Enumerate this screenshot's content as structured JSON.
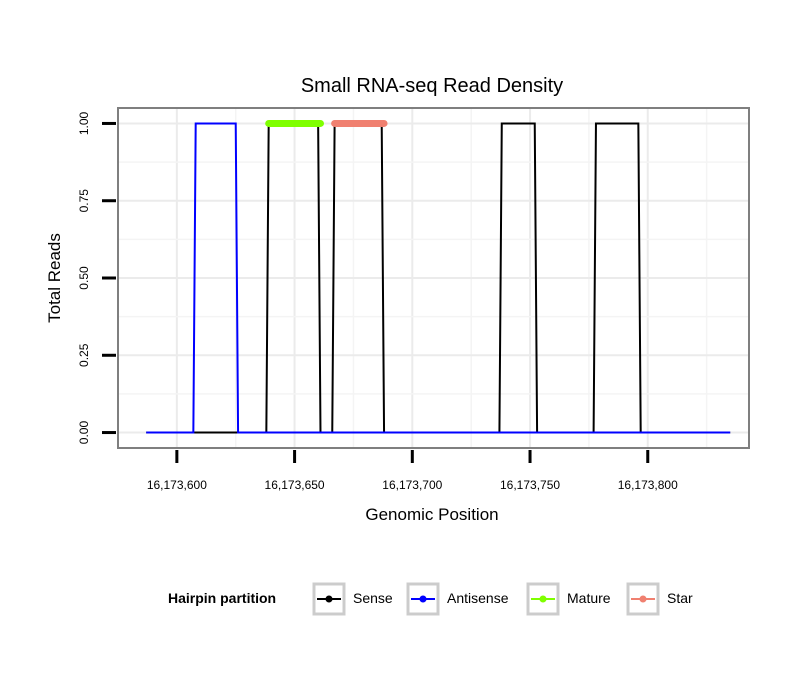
{
  "chart_data": {
    "type": "line",
    "title": "Small RNA-seq Read Density",
    "xlabel": "Genomic Position",
    "ylabel": "Total Reads",
    "xlim": [
      16173575,
      16173843
    ],
    "ylim": [
      -0.05,
      1.05
    ],
    "x_ticks": [
      16173600,
      16173650,
      16173700,
      16173750,
      16173800
    ],
    "x_tick_labels": [
      "16,173,600",
      "16,173,650",
      "16,173,700",
      "16,173,750",
      "16,173,800"
    ],
    "y_ticks": [
      0,
      0.25,
      0.5,
      0.75,
      1
    ],
    "y_tick_labels": [
      "0.00",
      "0.25",
      "0.50",
      "0.75",
      "1.00"
    ],
    "grid": true,
    "legend": {
      "title": "Hairpin partition",
      "position": "bottom",
      "entries": [
        "Sense",
        "Antisense",
        "Mature",
        "Star"
      ]
    },
    "series": [
      {
        "name": "Sense",
        "color": "#000000",
        "x": [
          16173587,
          16173638,
          16173639,
          16173660,
          16173661,
          16173666,
          16173667,
          16173687,
          16173688,
          16173737,
          16173738,
          16173752,
          16173753,
          16173777,
          16173778,
          16173796,
          16173797,
          16173835
        ],
        "y": [
          0,
          0,
          1,
          1,
          0,
          0,
          1,
          1,
          0,
          0,
          1,
          1,
          0,
          0,
          1,
          1,
          0,
          0
        ]
      },
      {
        "name": "Antisense",
        "color": "#0000FF",
        "x": [
          16173587,
          16173607,
          16173608,
          16173625,
          16173626,
          16173835
        ],
        "y": [
          0,
          0,
          1,
          1,
          0,
          0
        ]
      },
      {
        "name": "Mature",
        "color": "#7FFF00",
        "x": [
          16173639,
          16173661
        ],
        "y": [
          1,
          1
        ]
      },
      {
        "name": "Star",
        "color": "#F08070",
        "x": [
          16173667,
          16173688
        ],
        "y": [
          1,
          1
        ]
      }
    ]
  }
}
